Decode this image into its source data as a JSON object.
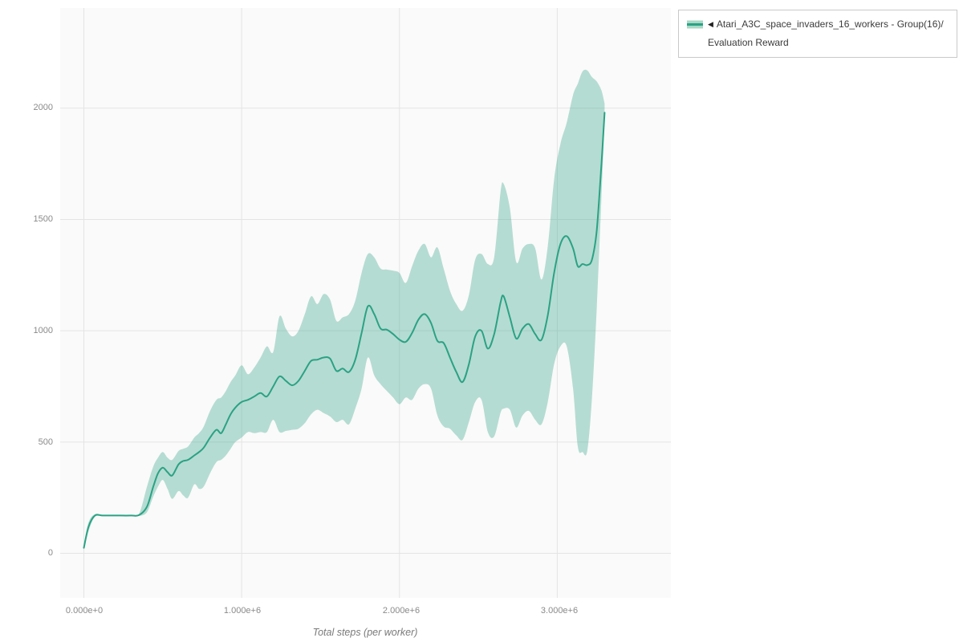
{
  "legend": {
    "collapse_icon": "◀",
    "series_label_line1": "Atari_A3C_space_invaders_16_workers - Group(16)/",
    "series_label_line2": "Evaluation Reward"
  },
  "axes": {
    "x_title": "Total steps (per worker)",
    "x_ticks": [
      "0.000e+0",
      "1.000e+6",
      "2.000e+6",
      "3.000e+6"
    ],
    "y_ticks": [
      "0",
      "500",
      "1000",
      "1500",
      "2000"
    ]
  },
  "colors": {
    "line": "#2aa284",
    "band_fill": "#2aa284",
    "band_opacity": 0.33,
    "legend_band": "#a8d9c6",
    "grid": "#e4e4e4",
    "panel": "#fafafa",
    "tick_label": "#8a8a8a"
  },
  "chart_data": {
    "type": "line",
    "title": "",
    "xlabel": "Total steps (per worker)",
    "ylabel": "",
    "xlim": [
      -150000,
      3720000
    ],
    "ylim": [
      -200,
      2450
    ],
    "x_tick_values": [
      0,
      1000000,
      2000000,
      3000000
    ],
    "x_tick_labels": [
      "0.000e+0",
      "1.000e+6",
      "2.000e+6",
      "3.000e+6"
    ],
    "y_tick_values": [
      0,
      500,
      1000,
      1500,
      2000
    ],
    "grid": true,
    "legend_position": "top-right",
    "series": [
      {
        "name": "Atari_A3C_space_invaders_16_workers - Group(16)/Evaluation Reward",
        "band": "min-max range around mean",
        "x": [
          0,
          30000,
          70000,
          120000,
          200000,
          300000,
          350000,
          400000,
          440000,
          470000,
          500000,
          530000,
          560000,
          600000,
          630000,
          660000,
          700000,
          730000,
          760000,
          800000,
          840000,
          870000,
          900000,
          930000,
          960000,
          1000000,
          1040000,
          1080000,
          1120000,
          1160000,
          1200000,
          1240000,
          1280000,
          1320000,
          1360000,
          1400000,
          1440000,
          1480000,
          1520000,
          1560000,
          1600000,
          1640000,
          1680000,
          1720000,
          1760000,
          1800000,
          1840000,
          1880000,
          1920000,
          1960000,
          2000000,
          2040000,
          2080000,
          2120000,
          2160000,
          2200000,
          2240000,
          2280000,
          2320000,
          2360000,
          2400000,
          2440000,
          2480000,
          2520000,
          2560000,
          2600000,
          2640000,
          2660000,
          2700000,
          2740000,
          2780000,
          2820000,
          2860000,
          2900000,
          2940000,
          2980000,
          3020000,
          3060000,
          3100000,
          3130000,
          3160000,
          3190000,
          3220000,
          3250000,
          3280000,
          3300000
        ],
        "mean": [
          25,
          120,
          170,
          170,
          170,
          170,
          172,
          210,
          300,
          360,
          385,
          365,
          350,
          400,
          415,
          420,
          440,
          455,
          475,
          520,
          555,
          540,
          580,
          625,
          655,
          680,
          690,
          705,
          720,
          705,
          750,
          795,
          775,
          755,
          775,
          820,
          865,
          870,
          880,
          875,
          820,
          830,
          815,
          870,
          990,
          1110,
          1075,
          1010,
          1005,
          985,
          960,
          950,
          990,
          1050,
          1075,
          1035,
          955,
          945,
          880,
          815,
          770,
          850,
          975,
          1000,
          920,
          985,
          1125,
          1155,
          1060,
          965,
          1010,
          1030,
          985,
          960,
          1070,
          1260,
          1390,
          1425,
          1370,
          1290,
          1300,
          1295,
          1320,
          1450,
          1750,
          1980
        ],
        "low": [
          15,
          100,
          165,
          170,
          170,
          170,
          168,
          185,
          255,
          300,
          330,
          290,
          245,
          280,
          260,
          250,
          310,
          290,
          300,
          360,
          410,
          420,
          440,
          470,
          500,
          520,
          545,
          540,
          545,
          545,
          600,
          545,
          550,
          555,
          560,
          585,
          625,
          645,
          630,
          615,
          590,
          600,
          580,
          650,
          740,
          880,
          800,
          760,
          730,
          700,
          670,
          700,
          690,
          740,
          760,
          740,
          620,
          570,
          560,
          530,
          510,
          590,
          680,
          690,
          545,
          525,
          630,
          650,
          645,
          565,
          620,
          640,
          600,
          580,
          680,
          850,
          930,
          930,
          740,
          480,
          455,
          460,
          700,
          1100,
          1600,
          1950
        ],
        "high": [
          40,
          140,
          176,
          171,
          171,
          171,
          178,
          300,
          390,
          430,
          455,
          430,
          420,
          460,
          470,
          480,
          520,
          540,
          570,
          640,
          690,
          700,
          730,
          770,
          800,
          845,
          805,
          835,
          880,
          930,
          905,
          1065,
          1010,
          975,
          1000,
          1075,
          1155,
          1120,
          1165,
          1140,
          1045,
          1060,
          1075,
          1135,
          1260,
          1345,
          1330,
          1280,
          1275,
          1270,
          1260,
          1215,
          1290,
          1360,
          1390,
          1330,
          1375,
          1280,
          1180,
          1120,
          1090,
          1160,
          1320,
          1345,
          1300,
          1330,
          1620,
          1660,
          1550,
          1310,
          1370,
          1390,
          1370,
          1230,
          1380,
          1680,
          1840,
          1935,
          2060,
          2110,
          2165,
          2170,
          2140,
          2120,
          2080,
          2020
        ]
      }
    ]
  }
}
